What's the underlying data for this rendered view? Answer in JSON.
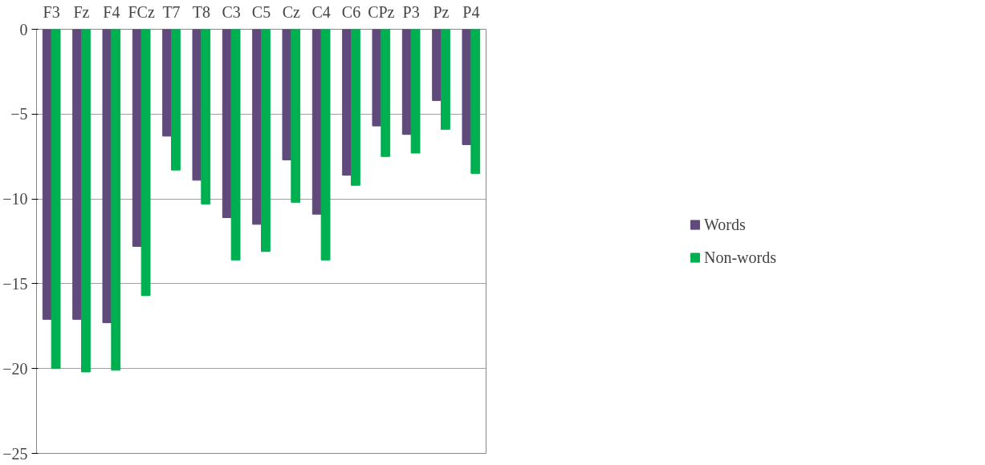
{
  "chart_data": {
    "type": "bar",
    "categories": [
      "F3",
      "Fz",
      "F4",
      "FCz",
      "T7",
      "T8",
      "C3",
      "C5",
      "Cz",
      "C4",
      "C6",
      "CPz",
      "P3",
      "Pz",
      "P4"
    ],
    "series": [
      {
        "name": "Words",
        "color": "#604a7b",
        "values": [
          -17.1,
          -17.1,
          -17.3,
          -12.8,
          -6.3,
          -8.9,
          -11.1,
          -11.5,
          -7.7,
          -10.9,
          -8.6,
          -5.7,
          -6.2,
          -4.2,
          -6.8
        ]
      },
      {
        "name": "Non-words",
        "color": "#00b050",
        "values": [
          -20.0,
          -20.2,
          -20.1,
          -15.7,
          -8.3,
          -10.3,
          -13.6,
          -13.1,
          -10.2,
          -13.6,
          -9.2,
          -7.5,
          -7.3,
          -5.9,
          -8.5
        ]
      }
    ],
    "ylim": [
      -25,
      0
    ],
    "yticks": [
      -25,
      -20,
      -15,
      -10,
      -5,
      0
    ],
    "grid": "y",
    "legend": "right"
  }
}
